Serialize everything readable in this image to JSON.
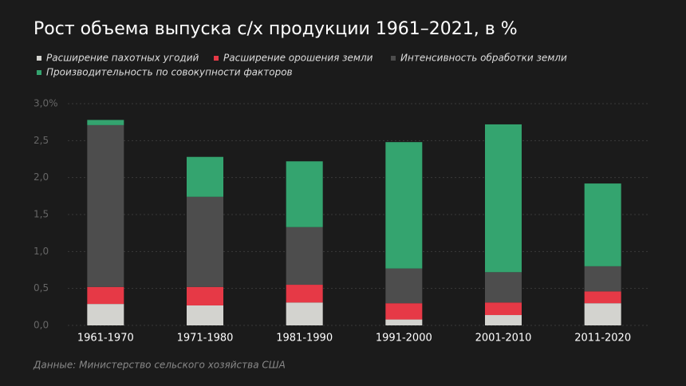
{
  "chart_data": {
    "type": "stacked_bar",
    "title": "Рост объема выпуска с/х продукции 1961–2021, в %",
    "source": "Данные: Министерство сельского хозяйства США",
    "categories": [
      "1961-1970",
      "1971-1980",
      "1981-1990",
      "1991-2000",
      "2001-2010",
      "2011-2020"
    ],
    "series": [
      {
        "name": "Расширение пахотных угодий",
        "color": "#d3d3cf",
        "values": [
          0.29,
          0.27,
          0.31,
          0.08,
          0.14,
          0.3
        ]
      },
      {
        "name": "Расширение орошения земли",
        "color": "#e63946",
        "values": [
          0.23,
          0.25,
          0.24,
          0.22,
          0.17,
          0.16
        ]
      },
      {
        "name": "Интенсивность обработки земли",
        "color": "#4d4d4d",
        "values": [
          2.19,
          1.22,
          0.78,
          0.47,
          0.41,
          0.34
        ]
      },
      {
        "name": "Производительность по совокупности факторов",
        "color": "#34a46f",
        "values": [
          0.07,
          0.54,
          0.89,
          1.71,
          2.0,
          1.12
        ]
      }
    ],
    "ylim": [
      0,
      3
    ],
    "yticks": [
      {
        "value": 0,
        "label": "0,0"
      },
      {
        "value": 0.5,
        "label": "0,5"
      },
      {
        "value": 1,
        "label": "1,0"
      },
      {
        "value": 1.5,
        "label": "1,5"
      },
      {
        "value": 2,
        "label": "2,0"
      },
      {
        "value": 2.5,
        "label": "2,5"
      },
      {
        "value": 3,
        "label": "3,0%"
      }
    ],
    "grid": true
  }
}
